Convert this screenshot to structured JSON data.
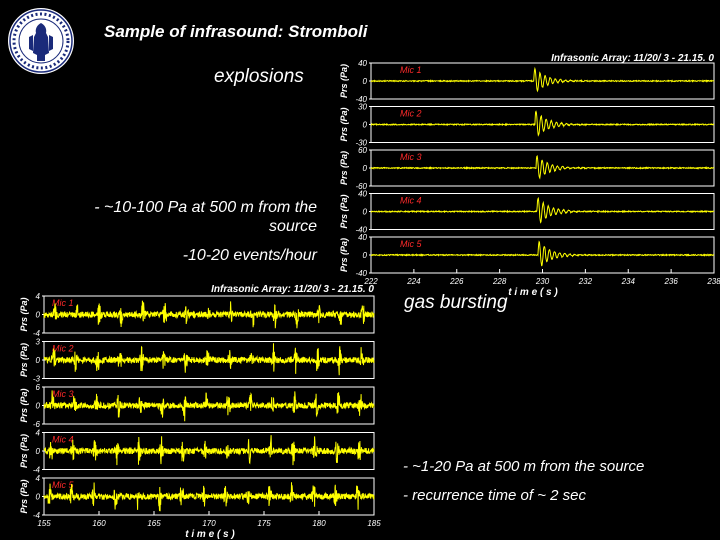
{
  "slide": {
    "title": "Sample of infrasound: Stromboli",
    "explosions_label": "explosions",
    "explosions_bullet_1": "- ~10-100 Pa at 500 m from the source",
    "explosions_bullet_2": "-10-20 events/hour",
    "gas_label": "gas bursting",
    "gas_bullet_1": "- ~1-20 Pa at 500 m from the source",
    "gas_bullet_2": "- recurrence time of ~ 2 sec"
  },
  "colors": {
    "background": "#000000",
    "trace": "#ffff00",
    "mic_label": "#ff2a2a",
    "axis": "#ffffff"
  },
  "icons": {
    "logo": "university-seal-icon"
  },
  "chart_data": [
    {
      "type": "line",
      "title": "Infrasonic Array: 11/20/ 3 - 21.15. 0",
      "xlabel": "t i m e  ( s )",
      "ylabel": "Prs (Pa)",
      "xlim": [
        222,
        238
      ],
      "x_ticks": [
        "222",
        "224",
        "226",
        "228",
        "230",
        "232",
        "234",
        "236",
        "238"
      ],
      "event_time": 229.6,
      "series": [
        {
          "name": "Mic 1",
          "ylim": [
            -40,
            40
          ],
          "y_ticks": [
            "40",
            "0",
            "-40"
          ],
          "peak": 30
        },
        {
          "name": "Mic 2",
          "ylim": [
            -30,
            30
          ],
          "y_ticks": [
            "30",
            "0",
            "-30"
          ],
          "peak": 24
        },
        {
          "name": "Mic 3",
          "ylim": [
            -60,
            60
          ],
          "y_ticks": [
            "60",
            "0",
            "-60"
          ],
          "peak": 45
        },
        {
          "name": "Mic 4",
          "ylim": [
            -40,
            40
          ],
          "y_ticks": [
            "40",
            "0",
            "-40"
          ],
          "peak": 32
        },
        {
          "name": "Mic 5",
          "ylim": [
            -40,
            40
          ],
          "y_ticks": [
            "40",
            "0",
            "-40"
          ],
          "peak": 32
        }
      ]
    },
    {
      "type": "line",
      "title": "Infrasonic Array: 11/20/ 3 - 21.15. 0",
      "xlabel": "t i m e  ( s )",
      "ylabel": "Prs (Pa)",
      "xlim": [
        155,
        185
      ],
      "x_ticks": [
        "155",
        "160",
        "165",
        "170",
        "175",
        "180",
        "185"
      ],
      "series": [
        {
          "name": "Mic 1",
          "ylim": [
            -4,
            4
          ],
          "y_ticks": [
            "4",
            "0",
            "-4"
          ],
          "peak": 3
        },
        {
          "name": "Mic 2",
          "ylim": [
            -3,
            3
          ],
          "y_ticks": [
            "3",
            "0",
            "-3"
          ],
          "peak": 2.3
        },
        {
          "name": "Mic 3",
          "ylim": [
            -6,
            6
          ],
          "y_ticks": [
            "6",
            "0",
            "-6"
          ],
          "peak": 4.5
        },
        {
          "name": "Mic 4",
          "ylim": [
            -4,
            4
          ],
          "y_ticks": [
            "4",
            "0",
            "-4"
          ],
          "peak": 3
        },
        {
          "name": "Mic 5",
          "ylim": [
            -4,
            4
          ],
          "y_ticks": [
            "4",
            "0",
            "-4"
          ],
          "peak": 3
        }
      ]
    }
  ]
}
